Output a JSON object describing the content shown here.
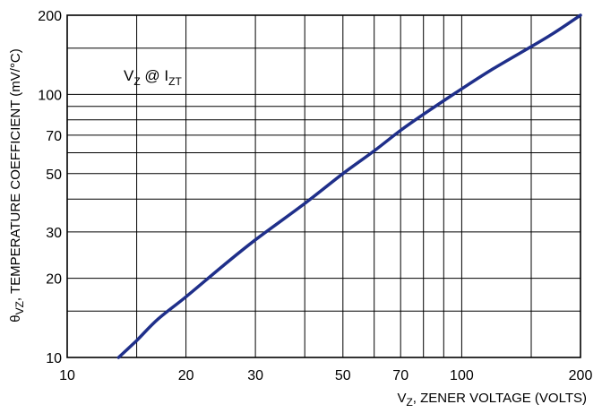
{
  "chart_data": {
    "type": "line",
    "title": "",
    "xscale": "log",
    "yscale": "log",
    "xlim": [
      10,
      200
    ],
    "ylim": [
      10,
      200
    ],
    "grid": true,
    "xlabel": {
      "prefix": "V",
      "sub": "Z",
      "rest": ", ZENER VOLTAGE (VOLTS)"
    },
    "ylabel": {
      "prefix": "θ",
      "sub": "VZ",
      "rest": ", TEMPERATURE COEFFICIENT (mV/°C)"
    },
    "annotation": {
      "v": "V",
      "vsub": "Z",
      "at": " @ I",
      "isub": "ZT"
    },
    "x_tick_labels": [
      {
        "value": 10,
        "label": "10"
      },
      {
        "value": 20,
        "label": "20"
      },
      {
        "value": 30,
        "label": "30"
      },
      {
        "value": 50,
        "label": "50"
      },
      {
        "value": 70,
        "label": "70"
      },
      {
        "value": 100,
        "label": "100"
      },
      {
        "value": 200,
        "label": "200"
      }
    ],
    "y_tick_labels": [
      {
        "value": 10,
        "label": "10"
      },
      {
        "value": 20,
        "label": "20"
      },
      {
        "value": 30,
        "label": "30"
      },
      {
        "value": 50,
        "label": "50"
      },
      {
        "value": 70,
        "label": "70"
      },
      {
        "value": 100,
        "label": "100"
      },
      {
        "value": 200,
        "label": "200"
      }
    ],
    "x_gridlines": [
      10,
      15,
      20,
      30,
      40,
      50,
      60,
      70,
      80,
      90,
      100,
      150,
      200
    ],
    "y_gridlines": [
      10,
      15,
      20,
      30,
      40,
      50,
      60,
      70,
      80,
      90,
      100,
      150,
      200
    ],
    "series": [
      {
        "color": "#1f2f8a",
        "points": [
          [
            13.5,
            10
          ],
          [
            15,
            11.6
          ],
          [
            17,
            14
          ],
          [
            20,
            17
          ],
          [
            25,
            22.5
          ],
          [
            30,
            28
          ],
          [
            40,
            38.5
          ],
          [
            50,
            50
          ],
          [
            60,
            61
          ],
          [
            70,
            73
          ],
          [
            80,
            84
          ],
          [
            100,
            105
          ],
          [
            120,
            125
          ],
          [
            150,
            152
          ],
          [
            170,
            170
          ],
          [
            200,
            200
          ]
        ]
      }
    ]
  }
}
